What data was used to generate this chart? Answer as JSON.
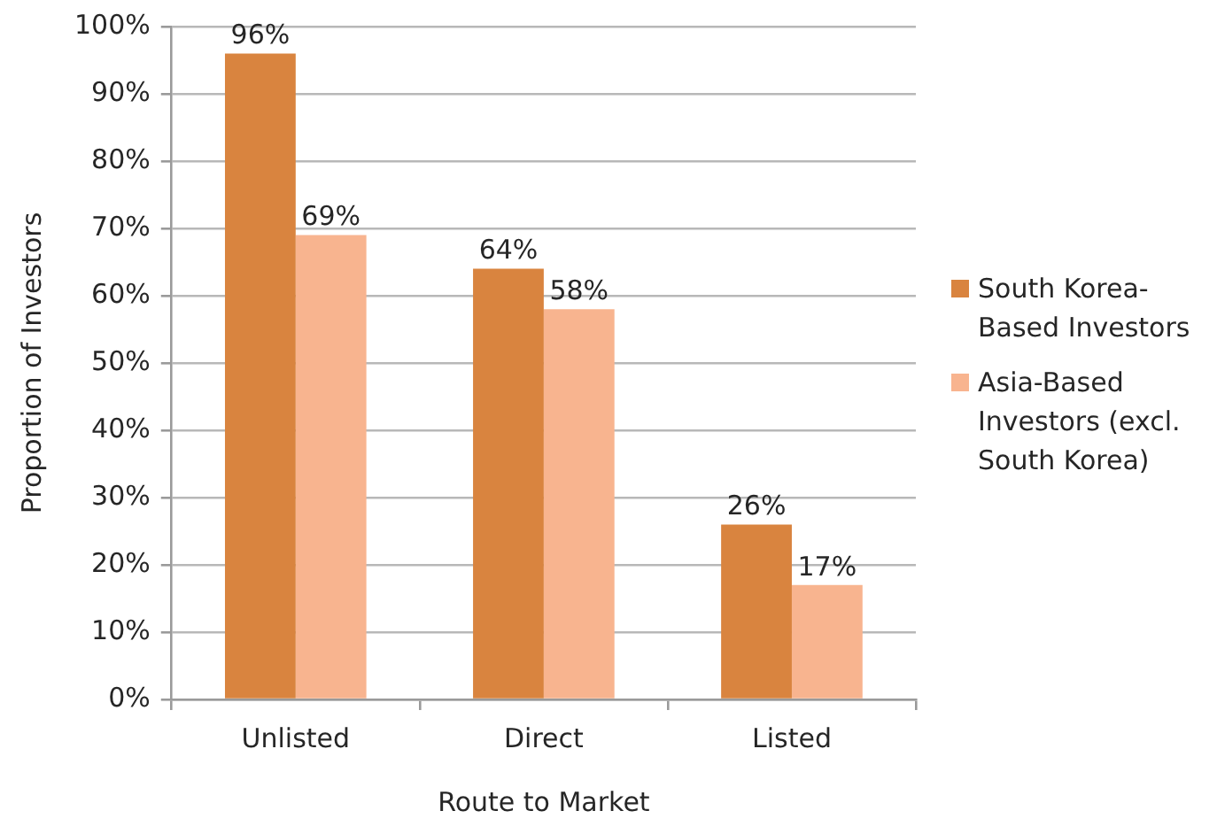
{
  "chart_data": {
    "type": "bar",
    "xlabel": "Route to Market",
    "ylabel": "Proportion of Investors",
    "categories": [
      "Unlisted",
      "Direct",
      "Listed"
    ],
    "series": [
      {
        "name": "South Korea-Based Investors",
        "color": "#d9843f",
        "values": [
          96,
          64,
          26
        ],
        "value_labels": [
          "96%",
          "64%",
          "26%"
        ]
      },
      {
        "name": "Asia-Based Investors (excl. South Korea)",
        "color": "#f8b48f",
        "values": [
          69,
          58,
          17
        ],
        "value_labels": [
          "69%",
          "58%",
          "17%"
        ]
      }
    ],
    "ylim": [
      0,
      100
    ],
    "yticks": [
      {
        "value": 0,
        "label": "0%"
      },
      {
        "value": 10,
        "label": "10%"
      },
      {
        "value": 20,
        "label": "20%"
      },
      {
        "value": 30,
        "label": "30%"
      },
      {
        "value": 40,
        "label": "40%"
      },
      {
        "value": 50,
        "label": "50%"
      },
      {
        "value": 60,
        "label": "60%"
      },
      {
        "value": 70,
        "label": "70%"
      },
      {
        "value": 80,
        "label": "80%"
      },
      {
        "value": 90,
        "label": "90%"
      },
      {
        "value": 100,
        "label": "100%"
      }
    ],
    "grid": "y",
    "legend": "right"
  }
}
